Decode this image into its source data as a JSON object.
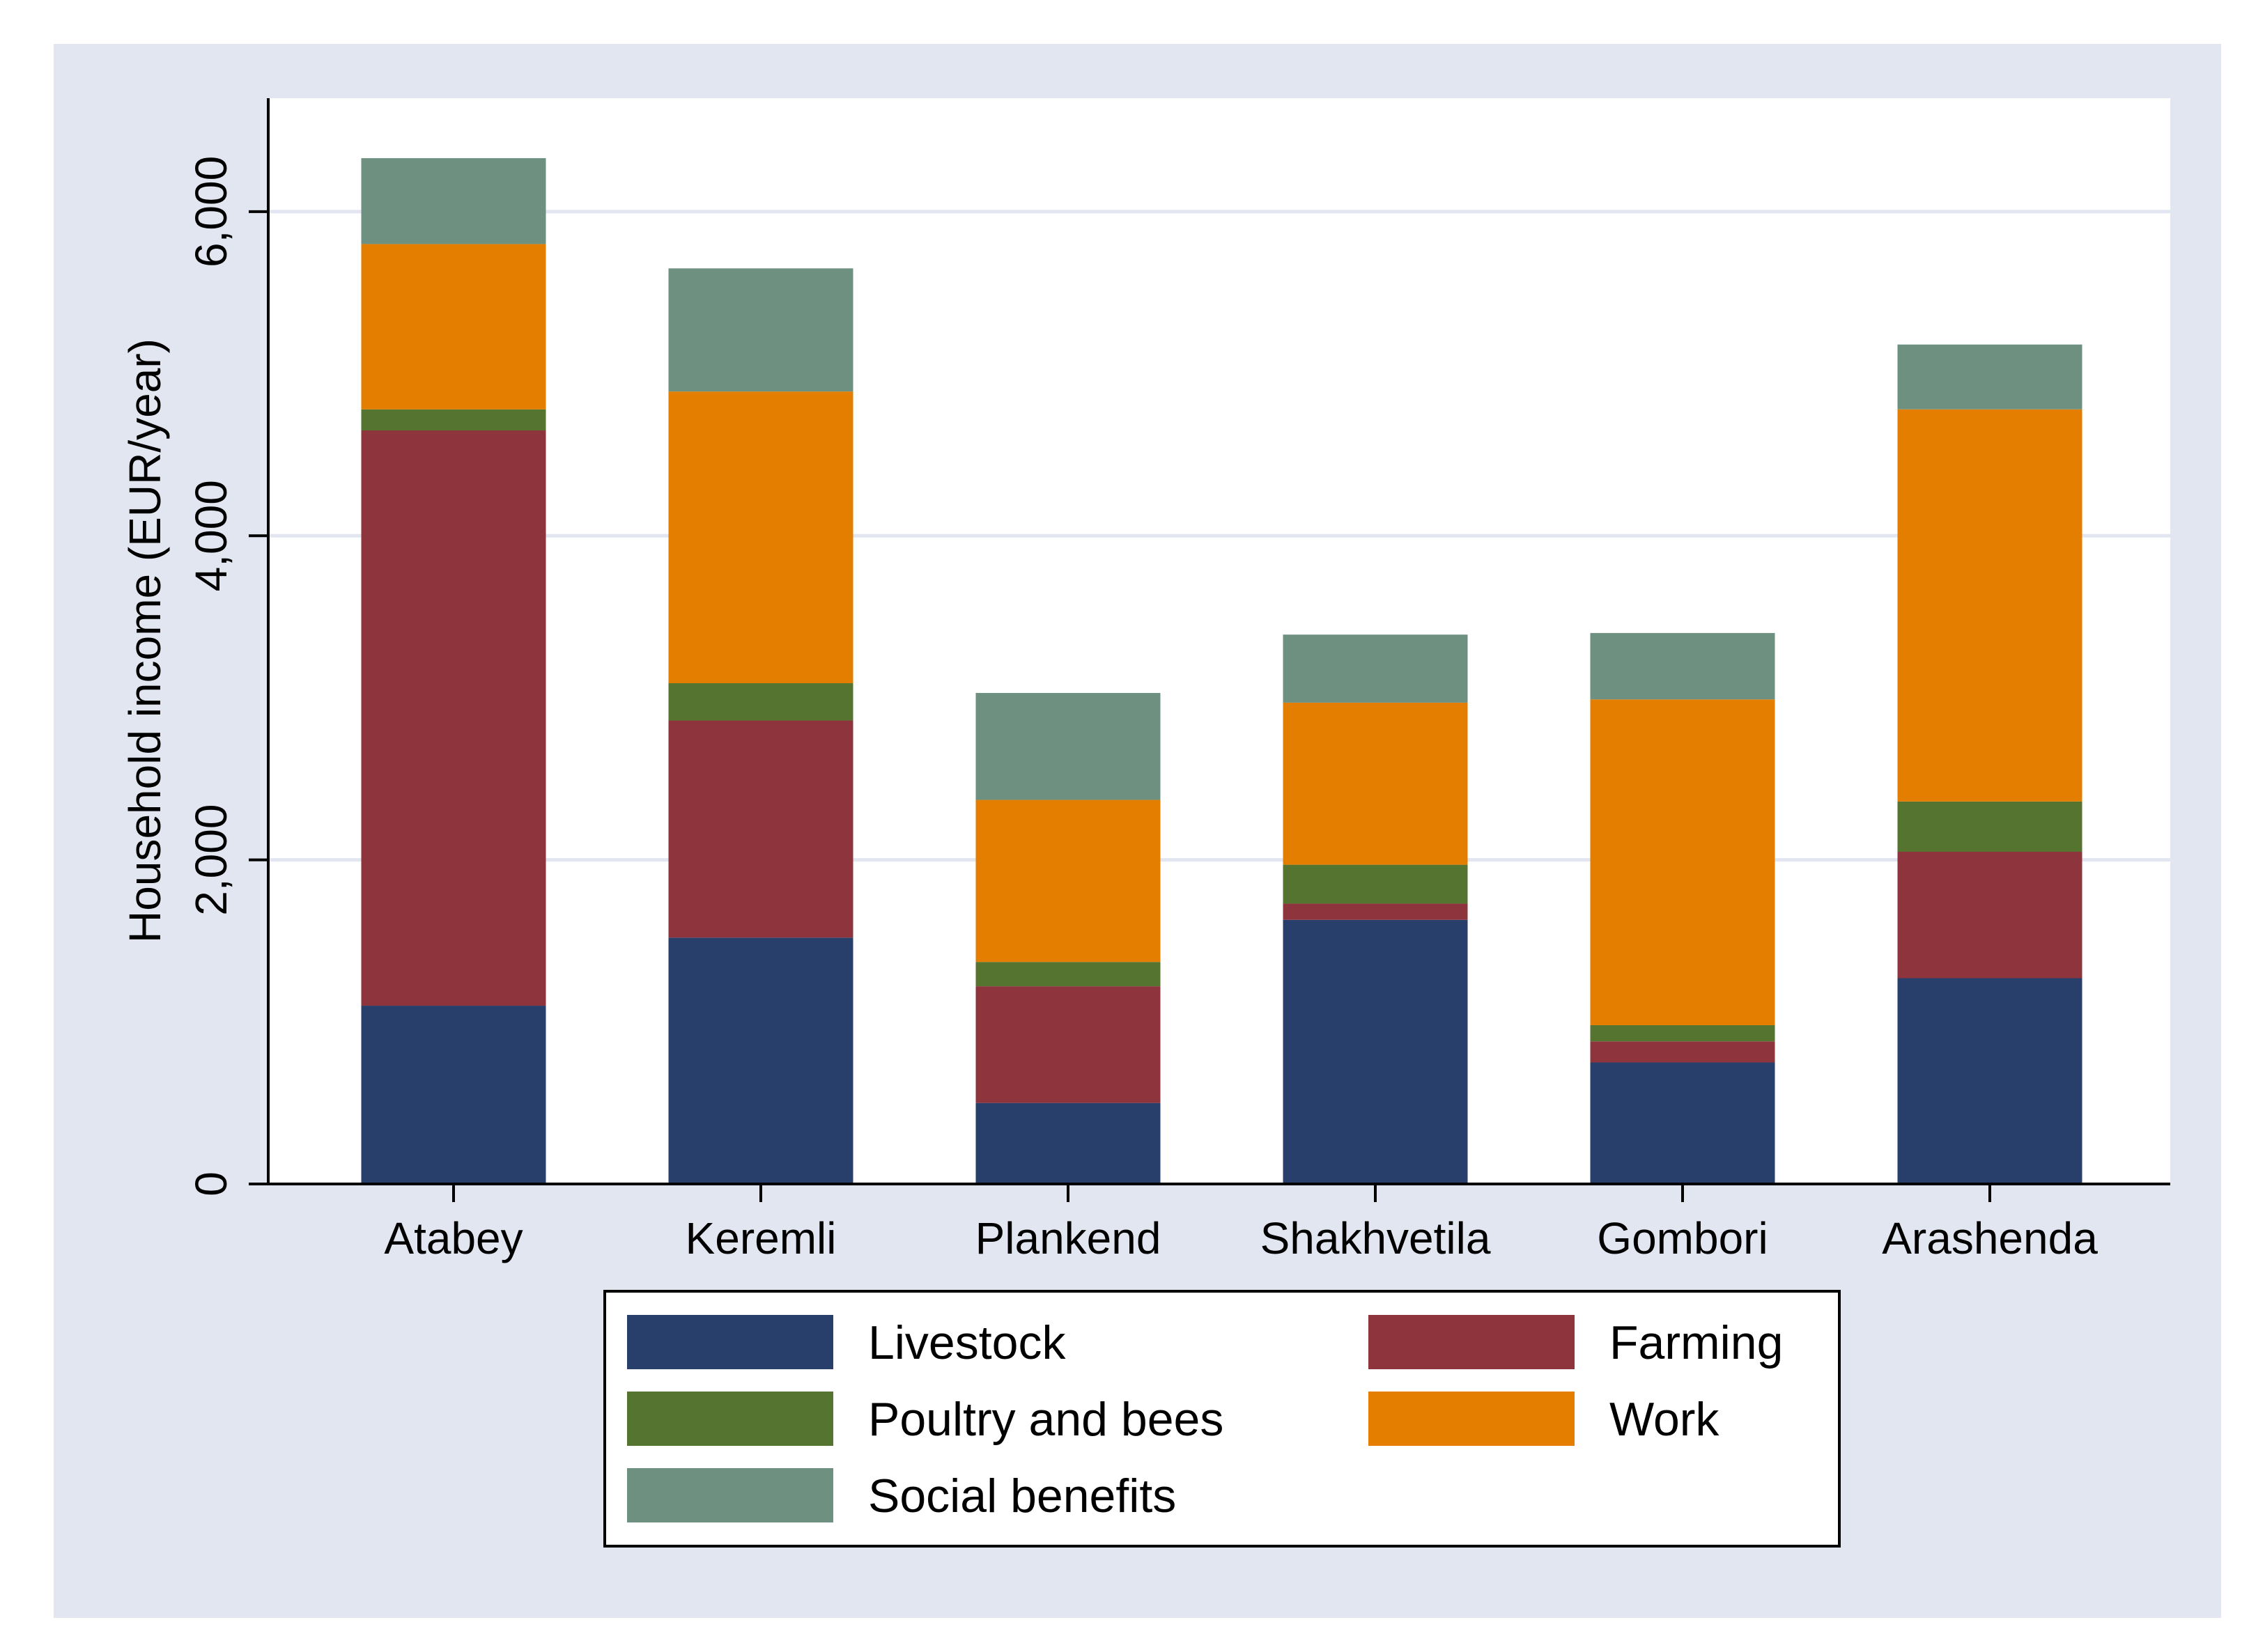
{
  "chart_data": {
    "type": "bar",
    "stacked": true,
    "title": "",
    "xlabel": "",
    "ylabel": "Household income (EUR/year)",
    "ylim": [
      0,
      6700
    ],
    "yticks": [
      0,
      2000,
      4000,
      6000
    ],
    "ytick_labels": [
      "0",
      "2,000",
      "4,000",
      "6,000"
    ],
    "grid": true,
    "legend_position": "bottom",
    "categories": [
      "Atabey",
      "Keremli",
      "Plankend",
      "Shakhvetila",
      "Gombori",
      "Arashenda"
    ],
    "series": [
      {
        "name": "Livestock",
        "color": "#283f6c",
        "values": [
          1100,
          1520,
          500,
          1630,
          750,
          1270
        ]
      },
      {
        "name": "Farming",
        "color": "#8e343d",
        "values": [
          3550,
          1340,
          720,
          100,
          130,
          780
        ]
      },
      {
        "name": "Poultry and bees",
        "color": "#55742f",
        "values": [
          130,
          230,
          150,
          240,
          100,
          310
        ]
      },
      {
        "name": "Work",
        "color": "#e37e00",
        "values": [
          1020,
          1800,
          1000,
          1000,
          2010,
          2420
        ]
      },
      {
        "name": "Social benefits",
        "color": "#6e9081",
        "values": [
          530,
          760,
          660,
          420,
          410,
          400
        ]
      }
    ]
  },
  "colors": {
    "outer_background": "#e1e6f0",
    "plot_background": "#ffffff",
    "gridline": "#e1e6f0"
  }
}
